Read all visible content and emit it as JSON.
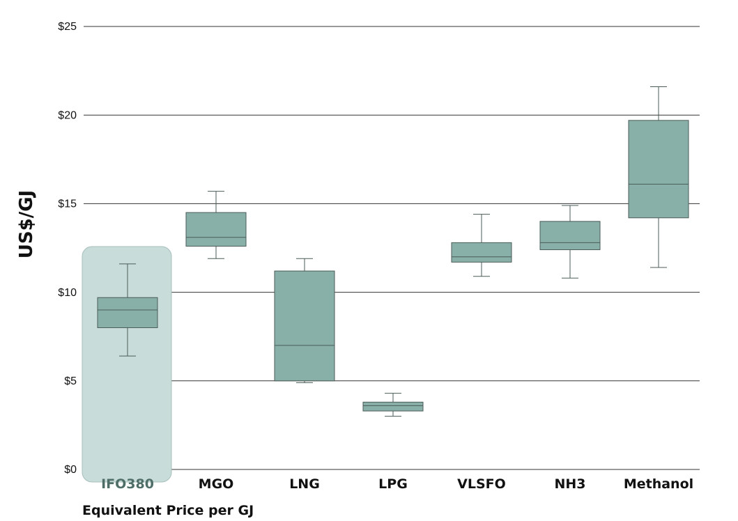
{
  "chart_data": {
    "type": "box",
    "title": "",
    "xlabel": "Equivalent Price per GJ",
    "ylabel": "US$/GJ",
    "ylim": [
      0,
      25
    ],
    "y_ticks": [
      0,
      5,
      10,
      15,
      20,
      25
    ],
    "y_tick_labels": [
      "$0",
      "$5",
      "$10",
      "$15",
      "$20",
      "$25"
    ],
    "grid": true,
    "highlighted_category": "IFO380",
    "colors": {
      "box_fill": "#88b0a8",
      "box_stroke": "#4a5b57",
      "highlight_fill": "#c8dcd9",
      "highlight_stroke": "#a7bfbb",
      "highlight_label": "#4f6e68",
      "gridline": "#333333"
    },
    "categories": [
      "IFO380",
      "MGO",
      "LNG",
      "LPG",
      "VLSFO",
      "NH3",
      "Methanol"
    ],
    "boxes": [
      {
        "category": "IFO380",
        "min": 6.4,
        "q1": 8.0,
        "median": 9.0,
        "q3": 9.7,
        "max": 11.6
      },
      {
        "category": "MGO",
        "min": 11.9,
        "q1": 12.6,
        "median": 13.1,
        "q3": 14.5,
        "max": 15.7
      },
      {
        "category": "LNG",
        "min": 4.9,
        "q1": 5.0,
        "median": 7.0,
        "q3": 11.2,
        "max": 11.9
      },
      {
        "category": "LPG",
        "min": 3.0,
        "q1": 3.3,
        "median": 3.6,
        "q3": 3.8,
        "max": 4.3
      },
      {
        "category": "VLSFO",
        "min": 10.9,
        "q1": 11.7,
        "median": 12.0,
        "q3": 12.8,
        "max": 14.4
      },
      {
        "category": "NH3",
        "min": 10.8,
        "q1": 12.4,
        "median": 12.8,
        "q3": 14.0,
        "max": 14.9
      },
      {
        "category": "Methanol",
        "min": 11.4,
        "q1": 14.2,
        "median": 16.1,
        "q3": 19.7,
        "max": 21.6
      }
    ]
  }
}
